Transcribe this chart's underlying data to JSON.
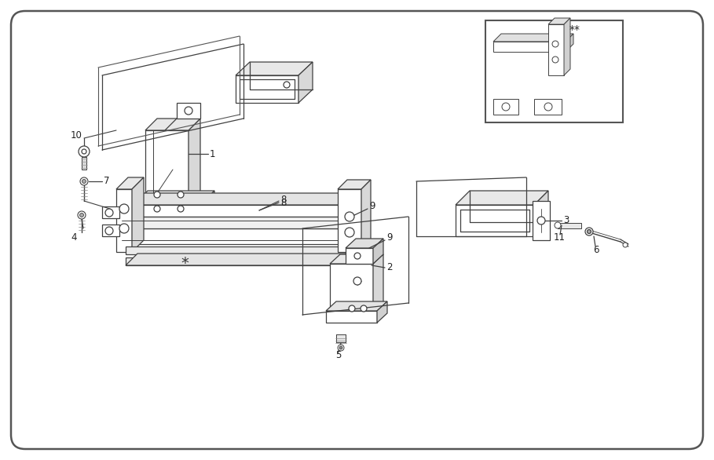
{
  "bg": "white",
  "border_color": "#444444",
  "lc": "#404040",
  "lw": 0.9,
  "fig_w": 9.09,
  "fig_h": 5.86,
  "dpi": 100
}
